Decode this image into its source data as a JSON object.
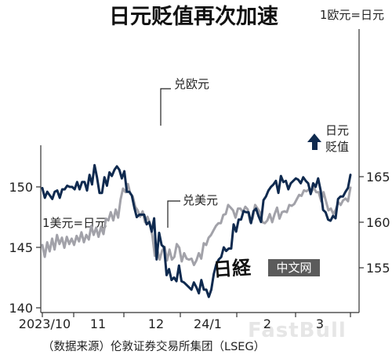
{
  "chart_data": {
    "type": "line",
    "title": "日元贬值再次加速",
    "x_tick_labels": [
      "2023/10",
      "11",
      "12",
      "24/1",
      "2",
      "3"
    ],
    "left_axis": {
      "ticks": [
        140,
        145,
        150
      ],
      "ylim": [
        140,
        153
      ]
    },
    "right_axis": {
      "ticks": [
        155,
        160,
        165
      ],
      "ylim": [
        153,
        165
      ],
      "unit_label": "1欧元=日元"
    },
    "left_unit_label": "1美元=日元",
    "annotation_arrow": "日元\n贬值",
    "source": "（数据来源）伦敦证券交易所集团（LSEG）",
    "colors": {
      "eur": "#a2a2a9",
      "usd": "#0f2a4f",
      "arrow": "#0f2a4f"
    },
    "series": [
      {
        "name": "兑欧元",
        "axis": "right",
        "values": [
          157.5,
          156.2,
          157.8,
          156.8,
          158.2,
          157.0,
          158.6,
          157.6,
          158.3,
          157.2,
          158.4,
          157.6,
          158.2,
          157.5,
          158.5,
          157.9,
          158.9,
          157.8,
          158.6,
          158.1,
          159.6,
          158.6,
          159.4,
          158.4,
          159.5,
          158.7,
          160.4,
          160.2,
          161.1,
          160.2,
          161.4,
          160.5,
          162.5,
          163.7,
          163.3,
          164.2,
          163.1,
          162.8,
          161.7,
          161.3,
          160.6,
          161.2,
          160.0,
          160.6,
          159.9,
          158.5,
          156.3,
          157.0,
          155.9,
          156.9,
          157.3,
          155.8,
          157.0,
          155.9,
          156.2,
          157.6,
          157.2,
          155.7,
          156.6,
          156.0,
          155.9,
          156.0,
          155.3,
          155.8,
          156.6,
          156.0,
          157.7,
          157.5,
          158.3,
          158.6,
          159.1,
          159.6,
          159.9,
          159.9,
          160.8,
          160.9,
          161.9,
          161.6,
          161.3,
          160.5,
          161.5,
          161.5,
          161.1,
          161.7,
          161.4,
          160.0,
          160.4,
          161.9,
          161.5,
          161.1,
          160.0,
          159.9,
          160.2,
          160.9,
          160.0,
          160.9,
          161.6,
          160.4,
          161.1,
          161.2,
          161.1,
          161.9,
          161.8,
          162.0,
          162.5,
          163.0,
          162.9,
          163.5,
          163.4,
          163.6,
          163.3,
          163.8,
          163.3,
          163.3,
          162.3,
          163.3,
          162.3,
          161.3,
          161.5,
          160.9,
          161.4,
          162.2,
          161.9,
          162.4,
          162.6,
          162.3,
          163.8
        ]
      },
      {
        "name": "兑美元",
        "axis": "left",
        "values": [
          149.9,
          149.1,
          149.6,
          149.3,
          149.0,
          149.6,
          149.7,
          149.1,
          149.8,
          149.8,
          150.1,
          150.0,
          150.0,
          149.8,
          150.4,
          149.8,
          150.4,
          150.4,
          149.7,
          151.0,
          150.2,
          151.8,
          150.8,
          149.5,
          149.5,
          150.8,
          150.1,
          151.2,
          150.9,
          151.4,
          151.7,
          151.4,
          150.7,
          151.3,
          149.6,
          149.6,
          149.3,
          148.3,
          147.5,
          147.7,
          147.7,
          147.7,
          146.9,
          147.1,
          146.3,
          147.4,
          144.0,
          146.2,
          145.2,
          145.0,
          142.7,
          143.2,
          142.3,
          142.5,
          142.2,
          143.5,
          142.2,
          142.1,
          141.9,
          141.7,
          141.5,
          142.1,
          141.7,
          141.2,
          142.3,
          141.5,
          141.5,
          140.9,
          141.5,
          142.8,
          143.6,
          144.0,
          144.2,
          145.0,
          144.7,
          144.9,
          144.9,
          146.9,
          146.3,
          147.3,
          147.3,
          148.0,
          147.9,
          147.9,
          147.0,
          148.0,
          148.2,
          147.6,
          147.1,
          148.9,
          149.2,
          149.7,
          150.0,
          150.2,
          150.5,
          149.5,
          150.9,
          150.4,
          150.5,
          149.8,
          150.3,
          150.5,
          150.7,
          150.6,
          150.3,
          150.8,
          150.5,
          150.3,
          149.4,
          150.3,
          150.0,
          150.7,
          149.7,
          148.1,
          147.9,
          147.3,
          147.2,
          147.6,
          147.4,
          149.0,
          149.2,
          149.2,
          149.6,
          149.9,
          151.0
        ]
      }
    ],
    "watermark": "FastBull",
    "logo": {
      "mark": "日経",
      "badge": "中文网"
    }
  }
}
